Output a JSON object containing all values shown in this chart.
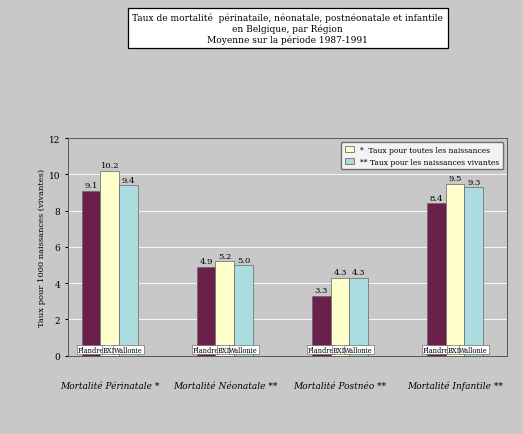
{
  "title_line1": "Taux de mortalité  périnataile, néonatale, postnéonatale et infantile",
  "title_line2": "en Belgique, par Région",
  "title_line3": "Moyenne sur la période 1987-1991",
  "categories": [
    "Mortalité Périnatale *",
    "Mortalité Néonatale **",
    "Mortalité Postnéo **",
    "Mortalité Infantile **"
  ],
  "regions": [
    "Flandre",
    "BXL",
    "Wallonie"
  ],
  "values": [
    [
      9.1,
      10.2,
      9.4
    ],
    [
      4.9,
      5.2,
      5.0
    ],
    [
      3.3,
      4.3,
      4.3
    ],
    [
      8.4,
      9.5,
      9.3
    ]
  ],
  "bar_colors": [
    "#6B1F4B",
    "#FFFFCC",
    "#AADCE0"
  ],
  "bar_edge_color": "#666666",
  "legend_labels": [
    "*  Taux pour toutes les naissances",
    "** Taux pour les naissances vivantes"
  ],
  "ylabel": "Taux pour 1000 naissances (vivantes)",
  "ylim": [
    0,
    12
  ],
  "yticks": [
    0,
    2,
    4,
    6,
    8,
    10,
    12
  ],
  "background_color": "#C8C8C8",
  "plot_bg_color": "#C8C8C8",
  "bar_width": 0.18,
  "group_positions": [
    0.35,
    1.45,
    2.55,
    3.65
  ],
  "label_fontsize": 6.0,
  "tick_label_fontsize": 6.5,
  "value_fontsize": 6.0,
  "cat_label_fontsize": 6.5,
  "region_fontsize": 4.8
}
